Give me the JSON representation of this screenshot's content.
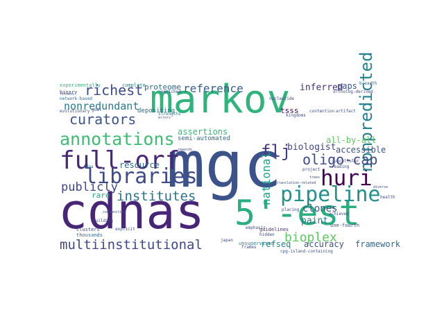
{
  "word_cloud": {
    "words": [
      {
        "text": "markov",
        "color": "#2fb47c"
      },
      {
        "text": "mgc",
        "color": "#3b528b"
      },
      {
        "text": "cdnas",
        "color": "#482677"
      },
      {
        "text": "5'-est",
        "color": "#29af7f"
      },
      {
        "text": "full-orf",
        "color": "#482878"
      },
      {
        "text": "pipeline",
        "color": "#21918c"
      },
      {
        "text": "libraries",
        "color": "#3e4a89"
      },
      {
        "text": "annotations",
        "color": "#3fbc73"
      },
      {
        "text": "huri",
        "color": "#440154"
      },
      {
        "text": "nonpredicted",
        "color": "#26828e"
      },
      {
        "text": "multiinstitutional",
        "color": "#3f4788"
      },
      {
        "text": "institutes",
        "color": "#2c728e"
      },
      {
        "text": "curators",
        "color": "#3b528b"
      },
      {
        "text": "oligo-cap",
        "color": "#3e4989"
      },
      {
        "text": "nonredundant",
        "color": "#2a788e"
      },
      {
        "text": "richest",
        "color": "#3e4a89"
      },
      {
        "text": "publicly",
        "color": "#414487"
      },
      {
        "text": "flj",
        "color": "#443983"
      },
      {
        "text": "bioplex",
        "color": "#5ec962"
      },
      {
        "text": "reference",
        "color": "#355f8d"
      },
      {
        "text": "national",
        "color": "#20a486"
      },
      {
        "text": "resource",
        "color": "#31688e"
      },
      {
        "text": "biologist",
        "color": "#414487"
      },
      {
        "text": "inferred",
        "color": "#46337e"
      },
      {
        "text": "accessible",
        "color": "#3b528b"
      },
      {
        "text": "assertions",
        "color": "#35b779"
      },
      {
        "text": "all-by-all",
        "color": "#5ec962"
      },
      {
        "text": "clones",
        "color": "#3b528b"
      },
      {
        "text": "paint",
        "color": "#2a788e"
      },
      {
        "text": "paps",
        "color": "#3b528b"
      },
      {
        "text": "accuracy",
        "color": "#3b528b"
      },
      {
        "text": "framework",
        "color": "#31688e"
      },
      {
        "text": "refseq",
        "color": "#26828e"
      },
      {
        "text": "proteome",
        "color": "#31688e"
      },
      {
        "text": "rare",
        "color": "#20a486"
      },
      {
        "text": "tsss",
        "color": "#440154"
      },
      {
        "text": "semi-automated",
        "color": "#31688e"
      },
      {
        "text": "experimentally",
        "color": "#35b779"
      },
      {
        "text": "complete",
        "color": "#26828e"
      },
      {
        "text": "binary",
        "color": "#3e4a89"
      },
      {
        "text": "network-based",
        "color": "#31688e"
      },
      {
        "text": "evolutionary",
        "color": "#3b528b"
      },
      {
        "text": "depositing",
        "color": "#31688e"
      },
      {
        "text": "guidelines",
        "color": "#482878"
      },
      {
        "text": "unsupervised",
        "color": "#26828e"
      },
      {
        "text": "one-fourth",
        "color": "#3e4a89"
      },
      {
        "text": "cpg-island-containing",
        "color": "#3b528b"
      },
      {
        "text": "clusters",
        "color": "#3e4a89"
      },
      {
        "text": "thousands",
        "color": "#31688e"
      },
      {
        "text": "building",
        "color": "#3e4a89"
      },
      {
        "text": "frames",
        "color": "#3e4a89"
      },
      {
        "text": "emphasis",
        "color": "#3e4a89"
      },
      {
        "text": "japan",
        "color": "#3e4a89"
      },
      {
        "text": "cdna",
        "color": "#31688e"
      },
      {
        "text": "explicit",
        "color": "#3e4a89"
      },
      {
        "text": "goal",
        "color": "#3e4a89"
      },
      {
        "text": "enriched",
        "color": "#3e4a89"
      },
      {
        "text": "nucleotide",
        "color": "#3e4a89"
      },
      {
        "text": "breadth",
        "color": "#31688e"
      },
      {
        "text": "ortholog-derived",
        "color": "#3e4a89"
      },
      {
        "text": "contention",
        "color": "#3e4a89"
      },
      {
        "text": "artifact",
        "color": "#3e4a89"
      },
      {
        "text": "kingdoms",
        "color": "#3e4a89"
      },
      {
        "text": "subcellular",
        "color": "#3e4a89"
      },
      {
        "text": "reading",
        "color": "#3e4a89"
      },
      {
        "text": "project",
        "color": "#3e4a89"
      },
      {
        "text": "placing",
        "color": "#3e4a89"
      },
      {
        "text": "achieved",
        "color": "#3e4a89"
      },
      {
        "text": "health",
        "color": "#3e4a89"
      },
      {
        "text": "fitness",
        "color": "#3e4a89"
      },
      {
        "text": "strengths",
        "color": "#2a788e"
      },
      {
        "text": "errors",
        "color": "#3e4a89"
      },
      {
        "text": "hidden",
        "color": "#3e4a89"
      },
      {
        "text": "communities",
        "color": "#3e4a89"
      },
      {
        "text": "trees",
        "color": "#3e4a89"
      },
      {
        "text": "diverse",
        "color": "#3e4a89"
      },
      {
        "text": "rewards",
        "color": "#3e4a89"
      },
      {
        "text": "translation-related",
        "color": "#3e4a89"
      }
    ]
  }
}
